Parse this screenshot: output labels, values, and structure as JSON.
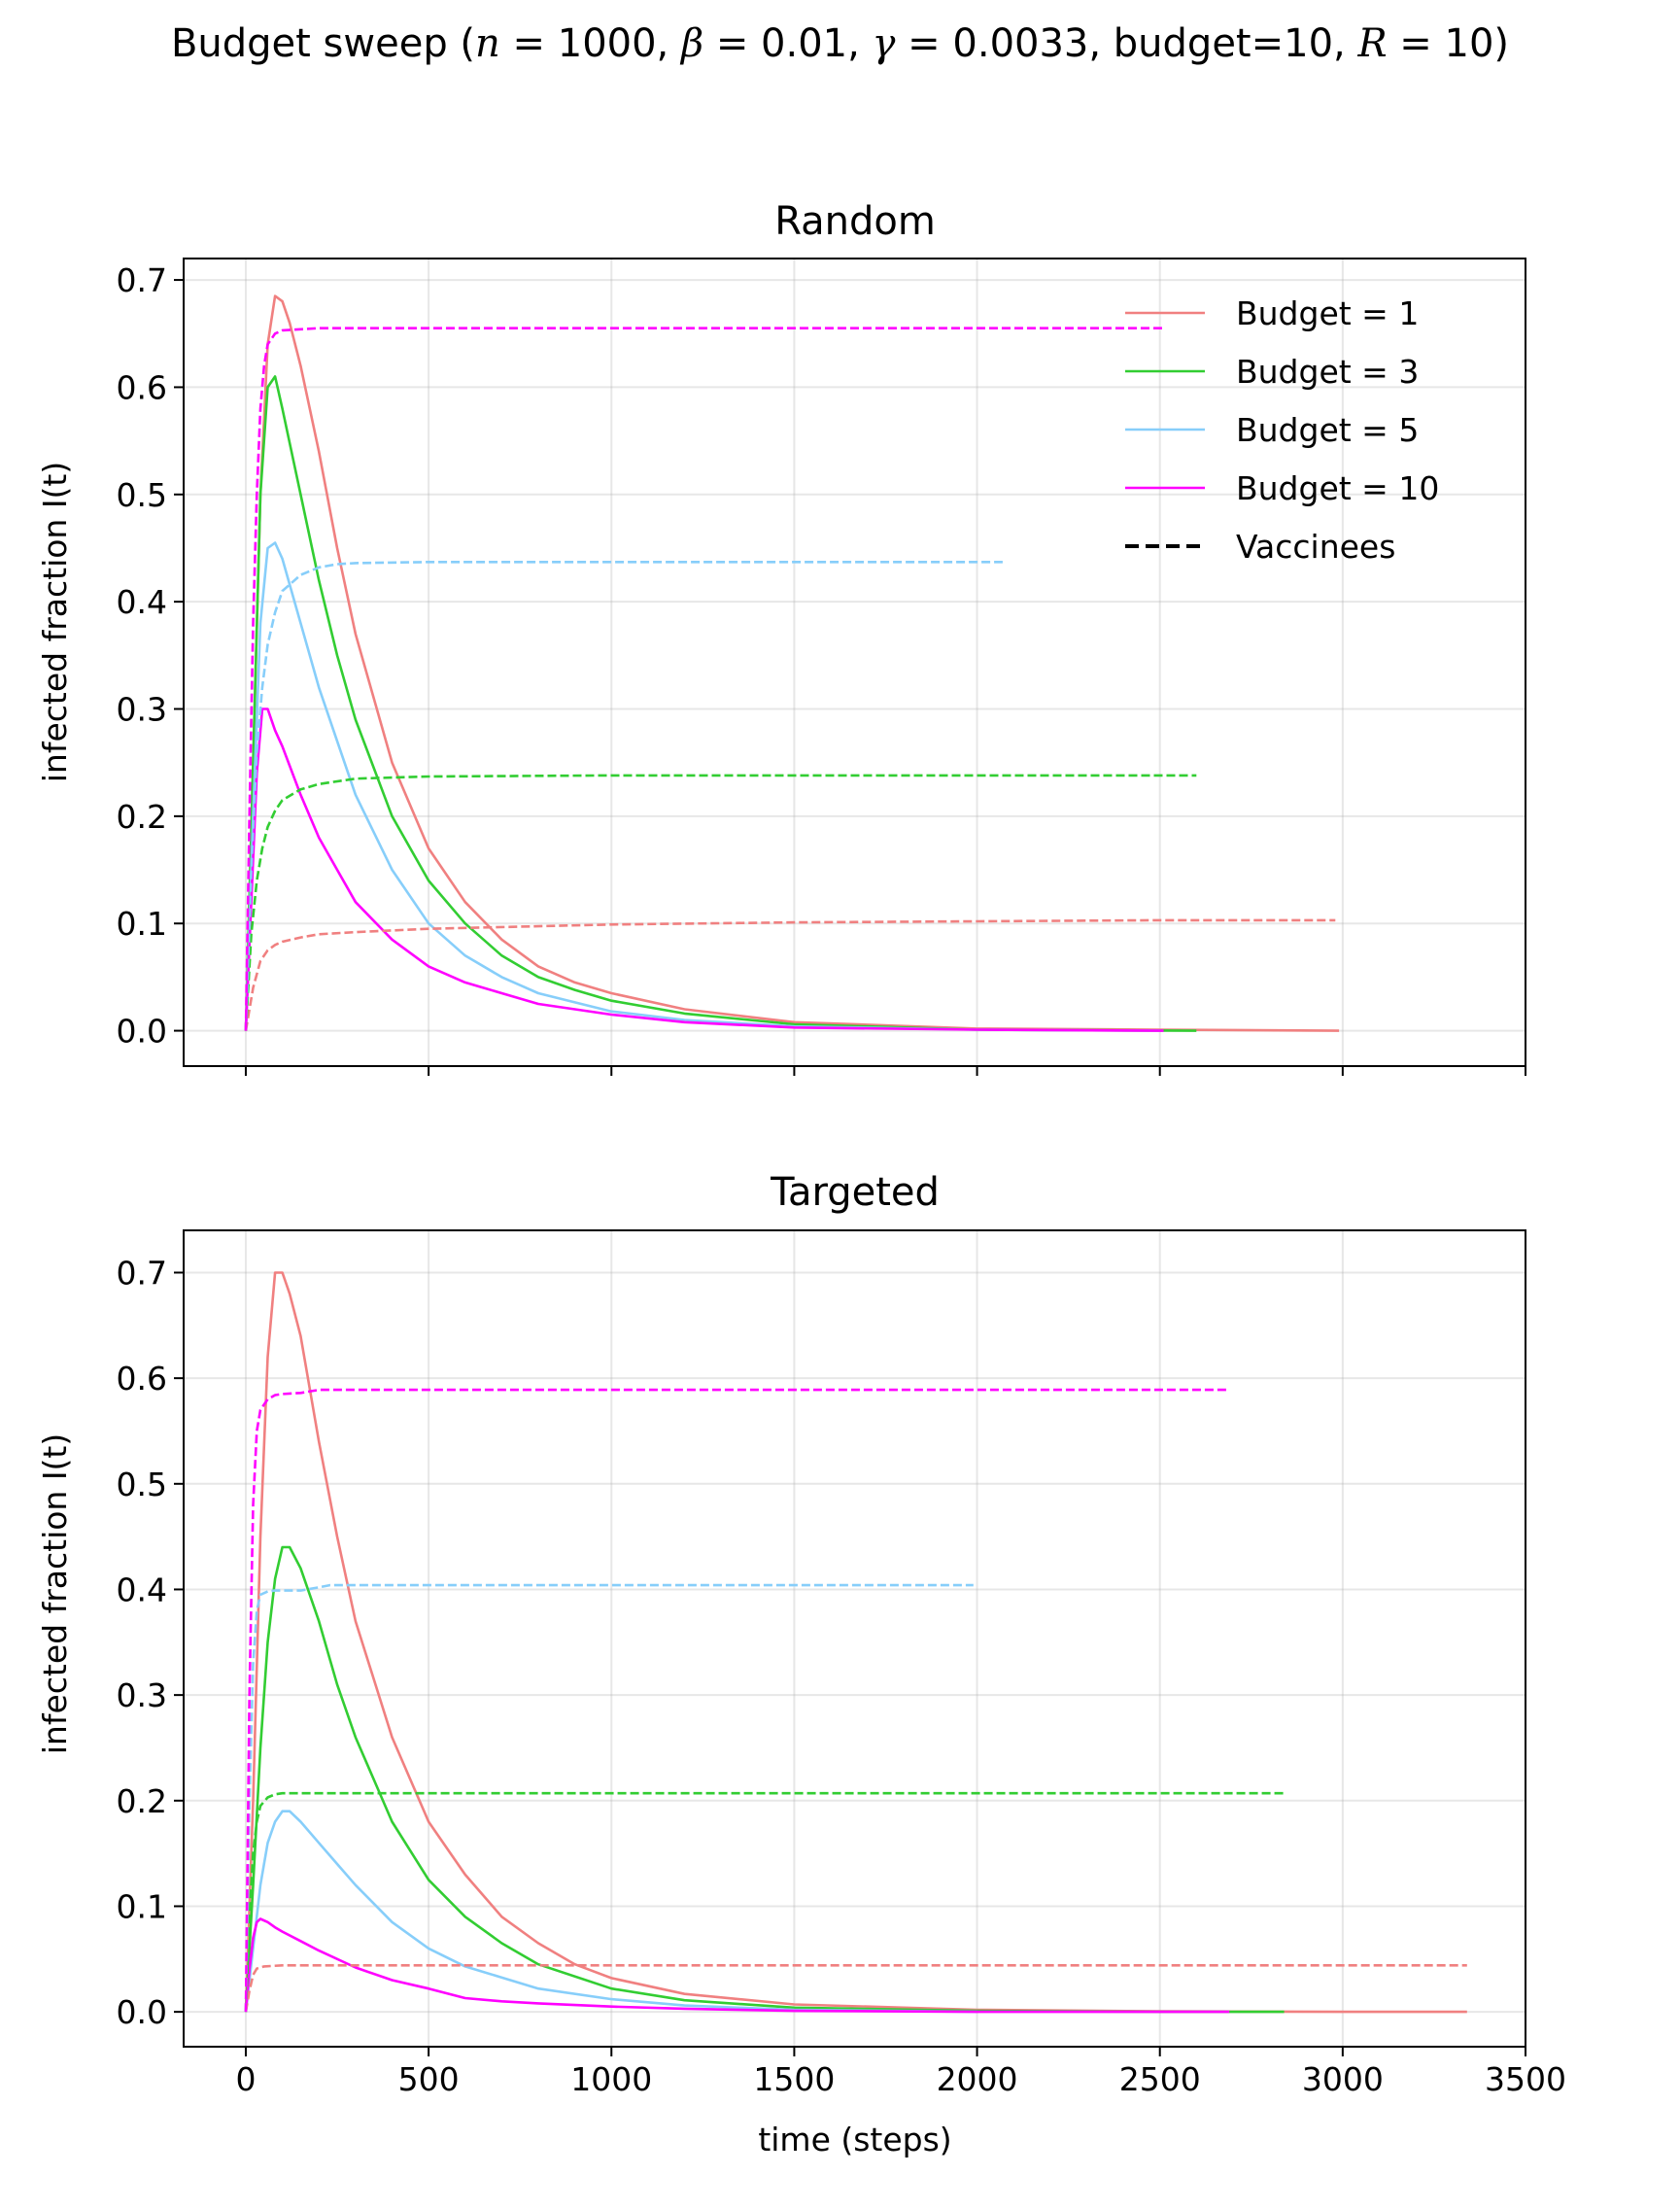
{
  "figure": {
    "suptitle_parts": [
      {
        "t": "Budget sweep (",
        "i": false
      },
      {
        "t": "n",
        "i": true
      },
      {
        "t": " = 1000, ",
        "i": false
      },
      {
        "t": "β",
        "i": true
      },
      {
        "t": " = 0.01, ",
        "i": false
      },
      {
        "t": "γ",
        "i": true
      },
      {
        "t": " = 0.0033, budget=10, ",
        "i": false
      },
      {
        "t": "R",
        "i": true
      },
      {
        "t": " = 10)",
        "i": false
      }
    ]
  },
  "legend": {
    "entries": [
      "Budget = 1",
      "Budget = 3",
      "Budget = 5",
      "Budget = 10",
      "Vaccinees"
    ],
    "colors": [
      "#f08080",
      "#32cd32",
      "#87cefa",
      "#ff00ff",
      "#000000"
    ],
    "styles": [
      "solid",
      "solid",
      "solid",
      "solid",
      "dashed"
    ],
    "placement": "top-right"
  },
  "chart_data": [
    {
      "type": "line",
      "title": "Random",
      "xlabel": "",
      "ylabel": "infected fraction I(t)",
      "xlim": [
        -170,
        3500
      ],
      "ylim": [
        -0.033,
        0.72
      ],
      "xticks": [
        0,
        500,
        1000,
        1500,
        2000,
        2500,
        3000,
        3500
      ],
      "xtick_labels_shown": false,
      "yticks": [
        0.0,
        0.1,
        0.2,
        0.3,
        0.4,
        0.5,
        0.6,
        0.7
      ],
      "ytick_labels": [
        "0.0",
        "0.1",
        "0.2",
        "0.3",
        "0.4",
        "0.5",
        "0.6",
        "0.7"
      ],
      "grid": true,
      "legend": "top-right",
      "series": [
        {
          "name": "Budget = 1",
          "style": "solid",
          "color": "#f08080",
          "x": [
            0,
            20,
            40,
            60,
            80,
            100,
            120,
            150,
            200,
            250,
            300,
            400,
            500,
            600,
            700,
            800,
            900,
            1000,
            1200,
            1500,
            2000,
            2500,
            2990
          ],
          "y": [
            0.0,
            0.25,
            0.5,
            0.64,
            0.685,
            0.68,
            0.66,
            0.62,
            0.54,
            0.45,
            0.37,
            0.25,
            0.17,
            0.12,
            0.085,
            0.06,
            0.045,
            0.035,
            0.02,
            0.008,
            0.002,
            0.001,
            0.0
          ]
        },
        {
          "name": "Budget = 3",
          "style": "solid",
          "color": "#32cd32",
          "x": [
            0,
            20,
            40,
            60,
            80,
            100,
            150,
            200,
            250,
            300,
            400,
            500,
            600,
            700,
            800,
            900,
            1000,
            1200,
            1500,
            2000,
            2600
          ],
          "y": [
            0.0,
            0.25,
            0.5,
            0.6,
            0.61,
            0.58,
            0.5,
            0.42,
            0.35,
            0.29,
            0.2,
            0.14,
            0.1,
            0.07,
            0.05,
            0.038,
            0.028,
            0.016,
            0.006,
            0.001,
            0.0
          ]
        },
        {
          "name": "Budget = 5",
          "style": "solid",
          "color": "#87cefa",
          "x": [
            0,
            20,
            40,
            60,
            80,
            100,
            150,
            200,
            250,
            300,
            400,
            500,
            600,
            700,
            800,
            1000,
            1200,
            1500,
            2000,
            2500
          ],
          "y": [
            0.0,
            0.2,
            0.38,
            0.45,
            0.455,
            0.44,
            0.38,
            0.32,
            0.27,
            0.22,
            0.15,
            0.1,
            0.07,
            0.05,
            0.035,
            0.018,
            0.01,
            0.004,
            0.001,
            0.0
          ]
        },
        {
          "name": "Budget = 10",
          "style": "solid",
          "color": "#ff00ff",
          "x": [
            0,
            15,
            30,
            45,
            60,
            80,
            100,
            150,
            200,
            250,
            300,
            400,
            500,
            600,
            700,
            800,
            1000,
            1200,
            1500,
            2000,
            2510
          ],
          "y": [
            0.0,
            0.12,
            0.24,
            0.3,
            0.3,
            0.28,
            0.265,
            0.22,
            0.18,
            0.15,
            0.12,
            0.085,
            0.06,
            0.045,
            0.035,
            0.025,
            0.015,
            0.008,
            0.003,
            0.001,
            0.0
          ]
        },
        {
          "name": "Vaccinees (Budget = 1)",
          "style": "dashed",
          "color": "#f08080",
          "x": [
            0,
            20,
            40,
            60,
            80,
            100,
            150,
            200,
            300,
            500,
            1000,
            1500,
            2000,
            2500,
            2980
          ],
          "y": [
            0.0,
            0.04,
            0.065,
            0.075,
            0.08,
            0.083,
            0.087,
            0.09,
            0.092,
            0.095,
            0.099,
            0.101,
            0.102,
            0.103,
            0.103
          ]
        },
        {
          "name": "Vaccinees (Budget = 3)",
          "style": "dashed",
          "color": "#32cd32",
          "x": [
            0,
            15,
            30,
            45,
            60,
            80,
            100,
            150,
            200,
            300,
            500,
            1000,
            2000,
            2600
          ],
          "y": [
            0.0,
            0.09,
            0.14,
            0.17,
            0.19,
            0.205,
            0.215,
            0.225,
            0.23,
            0.235,
            0.237,
            0.238,
            0.238,
            0.238
          ]
        },
        {
          "name": "Vaccinees (Budget = 5)",
          "style": "dashed",
          "color": "#87cefa",
          "x": [
            0,
            15,
            30,
            45,
            60,
            80,
            100,
            150,
            200,
            250,
            300,
            500,
            1000,
            2070
          ],
          "y": [
            0.0,
            0.15,
            0.26,
            0.32,
            0.36,
            0.39,
            0.41,
            0.425,
            0.432,
            0.435,
            0.436,
            0.437,
            0.437,
            0.437
          ]
        },
        {
          "name": "Vaccinees (Budget = 10)",
          "style": "dashed",
          "color": "#ff00ff",
          "x": [
            0,
            10,
            20,
            30,
            40,
            50,
            60,
            80,
            100,
            150,
            200,
            500,
            1000,
            2510
          ],
          "y": [
            0.0,
            0.2,
            0.38,
            0.5,
            0.58,
            0.62,
            0.64,
            0.65,
            0.653,
            0.654,
            0.655,
            0.655,
            0.655,
            0.655
          ]
        }
      ]
    },
    {
      "type": "line",
      "title": "Targeted",
      "xlabel": "time (steps)",
      "ylabel": "infected fraction I(t)",
      "xlim": [
        -170,
        3500
      ],
      "ylim": [
        -0.033,
        0.74
      ],
      "xticks": [
        0,
        500,
        1000,
        1500,
        2000,
        2500,
        3000,
        3500
      ],
      "xtick_labels": [
        "0",
        "500",
        "1000",
        "1500",
        "2000",
        "2500",
        "3000",
        "3500"
      ],
      "xtick_labels_shown": true,
      "yticks": [
        0.0,
        0.1,
        0.2,
        0.3,
        0.4,
        0.5,
        0.6,
        0.7
      ],
      "ytick_labels": [
        "0.0",
        "0.1",
        "0.2",
        "0.3",
        "0.4",
        "0.5",
        "0.6",
        "0.7"
      ],
      "grid": true,
      "series": [
        {
          "name": "Budget = 1",
          "style": "solid",
          "color": "#f08080",
          "x": [
            0,
            20,
            40,
            60,
            80,
            100,
            120,
            150,
            200,
            250,
            300,
            400,
            500,
            600,
            700,
            800,
            900,
            1000,
            1200,
            1500,
            2000,
            2500,
            3000,
            3340
          ],
          "y": [
            0.0,
            0.2,
            0.45,
            0.62,
            0.7,
            0.7,
            0.68,
            0.64,
            0.54,
            0.45,
            0.37,
            0.26,
            0.18,
            0.13,
            0.09,
            0.065,
            0.045,
            0.032,
            0.017,
            0.007,
            0.002,
            0.0005,
            0.0,
            0.0
          ]
        },
        {
          "name": "Budget = 3",
          "style": "solid",
          "color": "#32cd32",
          "x": [
            0,
            20,
            40,
            60,
            80,
            100,
            120,
            150,
            200,
            250,
            300,
            400,
            500,
            600,
            700,
            800,
            1000,
            1200,
            1500,
            2000,
            2500,
            2840
          ],
          "y": [
            0.0,
            0.12,
            0.25,
            0.35,
            0.41,
            0.44,
            0.44,
            0.42,
            0.37,
            0.31,
            0.26,
            0.18,
            0.125,
            0.09,
            0.065,
            0.045,
            0.022,
            0.011,
            0.004,
            0.001,
            0.0,
            0.0
          ]
        },
        {
          "name": "Budget = 5",
          "style": "solid",
          "color": "#87cefa",
          "x": [
            0,
            20,
            40,
            60,
            80,
            100,
            120,
            150,
            200,
            250,
            300,
            400,
            500,
            600,
            800,
            1000,
            1200,
            1500,
            2000
          ],
          "y": [
            0.0,
            0.06,
            0.12,
            0.16,
            0.18,
            0.19,
            0.19,
            0.18,
            0.16,
            0.14,
            0.12,
            0.085,
            0.06,
            0.043,
            0.022,
            0.012,
            0.006,
            0.002,
            0.0
          ]
        },
        {
          "name": "Budget = 10",
          "style": "solid",
          "color": "#ff00ff",
          "x": [
            0,
            10,
            20,
            30,
            40,
            60,
            80,
            100,
            150,
            200,
            300,
            400,
            500,
            600,
            700,
            800,
            1000,
            1200,
            1500,
            2000,
            2500,
            2690
          ],
          "y": [
            0.0,
            0.04,
            0.07,
            0.085,
            0.088,
            0.085,
            0.08,
            0.076,
            0.067,
            0.058,
            0.042,
            0.03,
            0.022,
            0.013,
            0.01,
            0.008,
            0.005,
            0.003,
            0.001,
            0.0,
            0.0,
            0.0
          ]
        },
        {
          "name": "Vaccinees (Budget = 1)",
          "style": "dashed",
          "color": "#f08080",
          "x": [
            0,
            10,
            20,
            30,
            50,
            100,
            500,
            1000,
            2000,
            3000,
            3340
          ],
          "y": [
            0.0,
            0.02,
            0.035,
            0.041,
            0.043,
            0.044,
            0.044,
            0.044,
            0.044,
            0.044,
            0.044
          ]
        },
        {
          "name": "Vaccinees (Budget = 3)",
          "style": "dashed",
          "color": "#32cd32",
          "x": [
            0,
            10,
            20,
            30,
            40,
            60,
            80,
            100,
            150,
            500,
            1000,
            2000,
            2840
          ],
          "y": [
            0.0,
            0.09,
            0.15,
            0.18,
            0.195,
            0.203,
            0.206,
            0.207,
            0.207,
            0.207,
            0.207,
            0.207,
            0.207
          ]
        },
        {
          "name": "Vaccinees (Budget = 5)",
          "style": "dashed",
          "color": "#87cefa",
          "x": [
            0,
            10,
            20,
            30,
            40,
            60,
            80,
            150,
            200,
            230,
            260,
            500,
            1000,
            1990
          ],
          "y": [
            0.0,
            0.2,
            0.33,
            0.38,
            0.395,
            0.398,
            0.399,
            0.399,
            0.402,
            0.404,
            0.404,
            0.404,
            0.404,
            0.404
          ]
        },
        {
          "name": "Vaccinees (Budget = 10)",
          "style": "dashed",
          "color": "#ff00ff",
          "x": [
            0,
            10,
            20,
            30,
            40,
            60,
            80,
            100,
            150,
            200,
            250,
            500,
            1000,
            2690
          ],
          "y": [
            0.0,
            0.3,
            0.48,
            0.55,
            0.57,
            0.58,
            0.584,
            0.585,
            0.586,
            0.589,
            0.589,
            0.589,
            0.589,
            0.589
          ]
        }
      ]
    }
  ]
}
